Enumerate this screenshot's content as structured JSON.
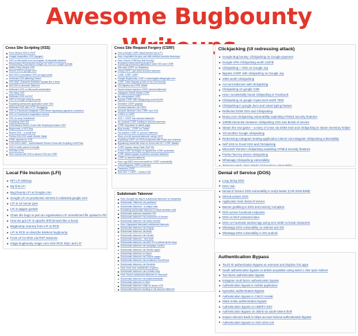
{
  "title": "Awesome Bugbounty Writeups",
  "sections": {
    "xss": {
      "heading": "Cross Site Scripting (XSS)",
      "items": [
        "From Stored XSS to RCE",
        "Google Acquisition XSS (Apigee)",
        "XSS on Microsoft.com via Angular Js template injection",
        "Researching Polymorphic Images for XSS on Google Scholar",
        "Netflix Party Simple XSS",
        "Stored XSS in google nest",
        "Self XSS to persistent XSS on login portal",
        "Universal XSS affecting Firefox",
        "XSS WAF Character limitation bypass like a boss",
        "Self XSS to Account Takeover",
        "Reflected XSS on Microsoft subdomains",
        "The tricky XSS",
        "Reflected XSS in AT&T",
        "XSS on Google using Acunetix",
        "Exploiting websocket application wide XSS",
        "Reflected XSS with HTTP Smuggling",
        "XSS on Facebook instagram CDN server bypassing signature protection",
        "XSS on Facebook's Acquisition Oculus",
        "XSS on sony Subdomain",
        "Exploiting Self XSS",
        "DOM-Based Firefox Cross Site Scripting inclusion XSS",
        "Bugbounty: a XSS Bug",
        "Stored XSS – a small find",
        "Firefox IDN XSS under Mobile Safari",
        "HTML injection to XSS",
        "CVE-2020-13487 - Authenticated Stored Cross-site Scripting in bbPress",
        "XSS in seller panel of shopify",
        "XSS like a Pro",
        "How i turned self XSS to stored XSS via CSRF"
      ]
    },
    "csrf": {
      "heading": "Cross Site Request Forgery (CSRF)",
      "items": [
        "How a simple CSRF attack turned into a P1",
        "How I exploited the json csrf with method override technique",
        "How I found CSRF(my first bounty)",
        "Exploiting websocket application wide XSS and CSRF",
        "Site wide CSRF on Glassdoor",
        "Using CSRF I got weird account takeover",
        "CSRF CSRF CSRF",
        "Google Bugbounty CSRF in learndigital.withgoogle.com",
        "CSRF Token Bypass (a tale of my 2nd bounty)",
        "2FA bypass via CSRF attack",
        "Stored iframe injection CSRF account takeover",
        "Instagram Delete Media CSRF",
        "An Unexpected CSRF",
        "Bypass CSRF with clickjacking worth $1250",
        "Sensitive CSRF graphql",
        "Account takeover via CSRF",
        "Account takeover via a CSRF and XSS",
        "CSRFs in CSRF",
        "XSS + CSRF into account takeover",
        "An unusual CSRF leading to account takeover",
        "CSRF bug leads to delete page",
        "Bug bounty – CSRF on Twitter",
        "Yet another CSRF to account takeover",
        "Story of a full account takeover using CSRF",
        "Exploiting CSRF on JSON endpoints with Flash and redirects",
        "Bypassing SameSite strict on forms with 307 CSRF attacks",
        "CSRF bypass using Flash SWF file",
        "A new CSRF technique to bypass the CSRF protection",
        "CSRF attack bypass to perform account takeover",
        "CSRF to account takeover",
        "How I got $500 from microsoft for CSRF vulnerability",
        "Critical Bypass CSRF protection",
        "Facebook CSRF",
        "Self XSS + CSRF = Stored XSS"
      ]
    },
    "clickjacking": {
      "heading": "Clickjacking (UI redressing attack)",
      "items": [
        "Google Bug bounty: Clickjacking on Google payment",
        "Google APIs Clickjacking worth 1337$",
        "Clickjacking + XSS on Google org",
        "Bypass CSRF with clickjacking on Google org",
        "1800 worth Clickjacking",
        "Account takeover with clickjacking",
        "Clickjacking on google CSE",
        "How i accidentally found clickjacking in Facebook",
        "Clickjacking on google myaccount worth 7500",
        "Clickjacking in google docs and voted typing feature",
        "Reflected DOM XSS and Clickjacking",
        "binary.com clickjacking vulnerability exploiting HTML5 security features",
        "1000$ interaction between clickjacking XSS and denial of service",
        "Steam the end game – a story of cross via DOM XSS and clickjacking in steam inventory helper",
        "Yet another Google clickjacking",
        "Redressing instagram leaking application tokens via instagram clickjacking vulnerability",
        "Self XSS to Good XSS and Clickjacking",
        "Microsoft Yammer clickjacking exploiting HTML5 security features",
        "Firefox find my device clickjacking",
        "Whatsapp Clickjacking vulnerability",
        "Telegram Web client (Web) Clickjacking vulnerability",
        "Clickjacking – UI redressing",
        "Clickjacking on mail"
      ]
    },
    "lfi": {
      "heading": "Local File Inclusion (LFI)",
      "items": [
        "RFI LFI Writeup",
        "My first LFI",
        "Bug bounty LFI at Google.com",
        "Google LFI on production servers in redacted.google.com",
        "LFI to 10 server pwn",
        "LFI in apigee portals",
        "Chain the bugs to pwn an organisation LFI unrestricted file upload to RCE",
        "How we got LFI in apache drill (Known like a boss)",
        "Bugbounty Journey from LFI to RCE",
        "LFI to RCE on deutche telekom bugbounty",
        "From LFI to RCE via PHP sessions",
        "magix bugbounty magix.com XSS RCE SQLi and LFI",
        "LFI in nokia maps"
      ]
    },
    "subdomain": {
      "heading": "Subdomain Takeover",
      "items": [
        "How i bought my way to subdomain takeover on tokopedia",
        "Subdomain Takeover via pantheon",
        "Subdomain takeover : a unique way",
        "Escalating subdomain takeover to steal sensitive stuff",
        "Subdomain takeover awarded 200",
        "Subdomain takeover via unsecured s3 bucket",
        "Subdomain takeover via wufoo service",
        "How I bypassed disclosed subdomain takeover",
        "Subdomain takeover via Shopify",
        "Subdomain takeover via fastly",
        "Subdomain takeover via Heroku",
        "Subdomain takeover : new level",
        "Subdomain takeover via AWS S3 to defeat all the keys",
        "Subdomain takeover via campaign monitor",
        "Subdomain takeover via Heroku again",
        "Subdomain takeover on Azure",
        "Subdomain takeover via GitHub pages",
        "Subdomain takeover via unclaimed CloudFront",
        "Subdomain takeover via Zendesk",
        "How i took over subdomain of yahoo",
        "Subdomain takeover via a hidden flag",
        "How I found subdomain takeover in microsoft",
        "Subdomain takeover via elasticbeanstalk",
        "Subdomain takeover in Uber",
        "Subdomain takeover chain to stored XSS",
        "Subdomain takeover leading to full account takeover"
      ]
    },
    "dos": {
      "heading": "Denial of Service (DOS)",
      "items": [
        "Long String DOS",
        "DOS Vuln",
        "Denial of Service DOS vulnerability in script loader (CVE-2018-6389)",
        "GitHub actions DOS",
        "Application level denial of service",
        "Banner grabbing to DOS and memory corruption",
        "DOS across Facebook endpoints",
        "DOS on WAF protected sites",
        "DOS on Facebook android app using zero width no break characters",
        "Whatsapp DOS vulnerability on android and iOS",
        "Whatsapp DOS vulnerability in iOS android"
      ]
    },
    "auth": {
      "heading": "Authentication Bypass",
      "items": [
        "Touch ID authentication Bypass on evernote and dropbox iOS apps",
        "Oauth authentication bypass on airbnb acquisition using wierd 1 char open redirect",
        "Two factor authentication bypass",
        "Instagram multi factor authentication bypass",
        "Authentication bypass in mobile application",
        "Symantec authentication Bypass",
        "Authentication bypass in CISCO meraki",
        "Slack SAML authentication bypass",
        "Authentication bypass on UBER's SSO",
        "Authentication Bypass on airbnb via oauth tokens theft",
        "Inspect element leads to stripe account lockout authentication Bypass",
        "Authentication bypass on SSO ubnt.com"
      ]
    }
  }
}
